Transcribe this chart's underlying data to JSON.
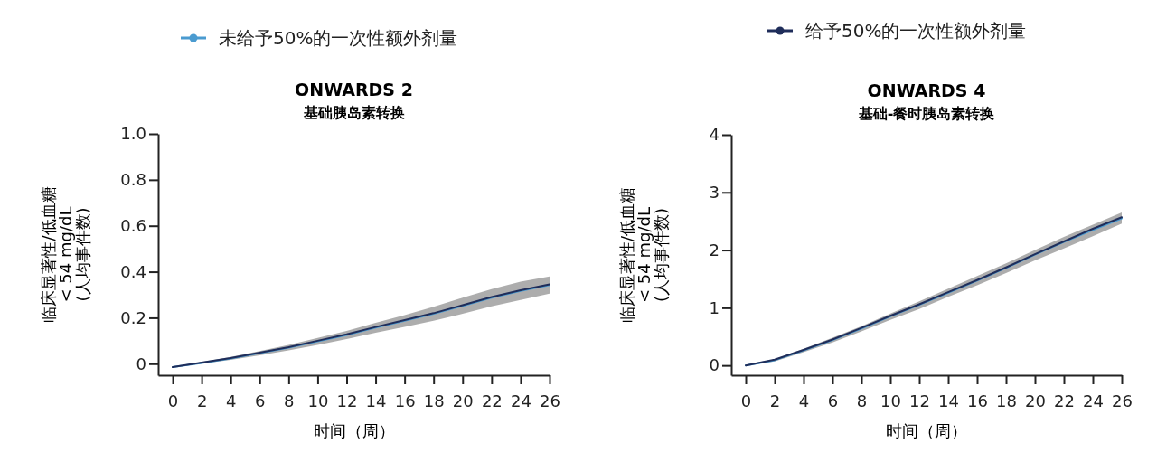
{
  "chart_data": [
    {
      "type": "line",
      "title": "ONWARDS 2",
      "subtitle": "基础胰岛素转换",
      "xlabel": "时间（周）",
      "ylabel": "临床显著性/低血糖\n< 54 mg/dL\n(人均事件数)",
      "legend": "top",
      "marker": "none",
      "line_style": "solid",
      "grid": false,
      "x": [
        0,
        2,
        4,
        6,
        8,
        10,
        12,
        14,
        16,
        18,
        20,
        22,
        24,
        26
      ],
      "xlim": [
        -1,
        26
      ],
      "xticks": [
        0,
        2,
        4,
        6,
        8,
        10,
        12,
        14,
        16,
        18,
        20,
        22,
        24,
        26
      ],
      "ylim": [
        -0.05,
        1.0
      ],
      "yticks": [
        0,
        {
          "value": 0.2,
          "label": "0.2"
        },
        {
          "value": 0.4,
          "label": "0.4"
        },
        {
          "value": 0.6,
          "label": "0.6"
        },
        {
          "value": 0.8,
          "label": "0.8"
        },
        {
          "value": 1.0,
          "label": "1.0"
        }
      ],
      "series": [
        {
          "name": "未给予50%的一次性额外剂量",
          "color": "#4a9bd0",
          "values": [
            -0.015,
            0.003,
            0.023,
            0.046,
            0.07,
            0.097,
            0.125,
            0.157,
            0.187,
            0.217,
            0.252,
            0.287,
            0.317,
            0.342
          ],
          "lower": [
            -0.015,
            0.0,
            0.017,
            0.037,
            0.058,
            0.082,
            0.107,
            0.135,
            0.16,
            0.187,
            0.217,
            0.25,
            0.277,
            0.305
          ],
          "upper": [
            -0.015,
            0.008,
            0.03,
            0.055,
            0.082,
            0.112,
            0.143,
            0.178,
            0.212,
            0.248,
            0.287,
            0.325,
            0.357,
            0.38
          ]
        },
        {
          "color": "#1f2d5a",
          "values": [
            -0.015,
            0.005,
            0.025,
            0.048,
            0.072,
            0.1,
            0.128,
            0.16,
            0.19,
            0.22,
            0.255,
            0.29,
            0.32,
            0.345
          ]
        }
      ]
    },
    {
      "type": "line",
      "title": "ONWARDS 4",
      "subtitle": "基础-餐时胰岛素转换",
      "xlabel": "时间（周）",
      "ylabel": "临床显著性/低血糖\n< 54 mg/dL\n(人均事件数)",
      "legend": "top",
      "marker": "none",
      "line_style": "solid",
      "grid": false,
      "x": [
        0,
        2,
        4,
        6,
        8,
        10,
        12,
        14,
        16,
        18,
        20,
        22,
        24,
        26
      ],
      "xlim": [
        -1,
        26
      ],
      "xticks": [
        0,
        2,
        4,
        6,
        8,
        10,
        12,
        14,
        16,
        18,
        20,
        22,
        24,
        26
      ],
      "ylim": [
        -0.17,
        4
      ],
      "yticks": [
        0,
        1,
        2,
        3,
        4
      ],
      "series": [
        {
          "color": "#4a9bd0",
          "values": [
            0,
            0.09,
            0.26,
            0.44,
            0.64,
            0.85,
            1.05,
            1.26,
            1.47,
            1.69,
            1.92,
            2.14,
            2.35,
            2.55
          ],
          "lower": [
            0,
            0.07,
            0.23,
            0.4,
            0.59,
            0.79,
            0.98,
            1.19,
            1.39,
            1.6,
            1.82,
            2.03,
            2.24,
            2.46
          ],
          "upper": [
            0,
            0.11,
            0.29,
            0.48,
            0.68,
            0.9,
            1.11,
            1.33,
            1.55,
            1.77,
            2.0,
            2.23,
            2.44,
            2.65
          ]
        },
        {
          "name": "给予50%的一次性额外剂量",
          "color": "#1f2d5a",
          "values": [
            0,
            0.1,
            0.27,
            0.45,
            0.65,
            0.86,
            1.06,
            1.27,
            1.48,
            1.7,
            1.93,
            2.15,
            2.37,
            2.57
          ]
        }
      ]
    }
  ]
}
